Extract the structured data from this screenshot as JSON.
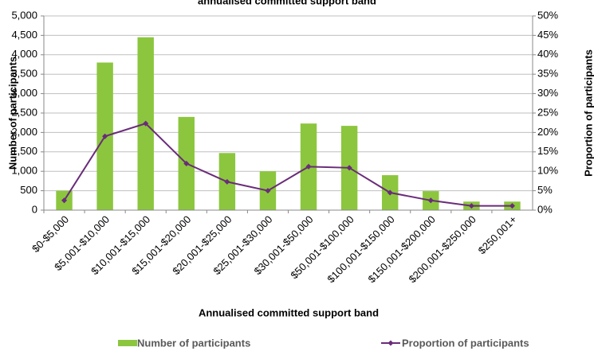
{
  "chart_data": {
    "type": "bar_line",
    "title": "annualised committed support band",
    "x_label": "Annualised committed support band",
    "y_label": "Number of participants",
    "y2_label": "Proportion of participants",
    "categories": [
      "$0-$5,000",
      "$5,001-$10,000",
      "$10,001-$15,000",
      "$15,001-$20,000",
      "$20,001-$25,000",
      "$25,001-$30,000",
      "$30,001-$50,000",
      "$50,001-$100,000",
      "$100,001-$150,000",
      "$150,001-$200,000",
      "$200,001-$250,000",
      "$250,001+"
    ],
    "series": [
      {
        "name": "Number of participants",
        "color": "#8cc63e",
        "values": [
          500,
          3800,
          4450,
          2400,
          1470,
          1000,
          2230,
          2170,
          900,
          490,
          220,
          220
        ]
      },
      {
        "name": "Proportion of participants",
        "color": "#6a2c7a",
        "axis": "y2",
        "values": [
          2.5,
          19,
          22.3,
          12,
          7.3,
          5,
          11.2,
          10.9,
          4.5,
          2.5,
          1.1,
          1.1
        ]
      }
    ],
    "ylim": [
      0,
      5000
    ],
    "yticks": [
      0,
      500,
      {
        "value": 1000,
        "label": "1,000"
      },
      {
        "value": 1500,
        "label": "1,500"
      },
      {
        "value": 2000,
        "label": "2,000"
      },
      {
        "value": 2500,
        "label": "2,500"
      },
      {
        "value": 3000,
        "label": "3,000"
      },
      {
        "value": 3500,
        "label": "3,500"
      },
      {
        "value": 4000,
        "label": "4,000"
      },
      {
        "value": 4500,
        "label": "4,500"
      },
      {
        "value": 5000,
        "label": "5,000"
      }
    ],
    "y2lim": [
      0,
      50
    ],
    "y2ticks": [
      {
        "value": 0,
        "label": "0%"
      },
      {
        "value": 5,
        "label": "5%"
      },
      {
        "value": 10,
        "label": "10%"
      },
      {
        "value": 15,
        "label": "15%"
      },
      {
        "value": 20,
        "label": "20%"
      },
      {
        "value": 25,
        "label": "25%"
      },
      {
        "value": 30,
        "label": "30%"
      },
      {
        "value": 35,
        "label": "35%"
      },
      {
        "value": 40,
        "label": "40%"
      },
      {
        "value": 45,
        "label": "45%"
      },
      {
        "value": 50,
        "label": "50%"
      }
    ],
    "grid": true,
    "legend": "bottom"
  }
}
